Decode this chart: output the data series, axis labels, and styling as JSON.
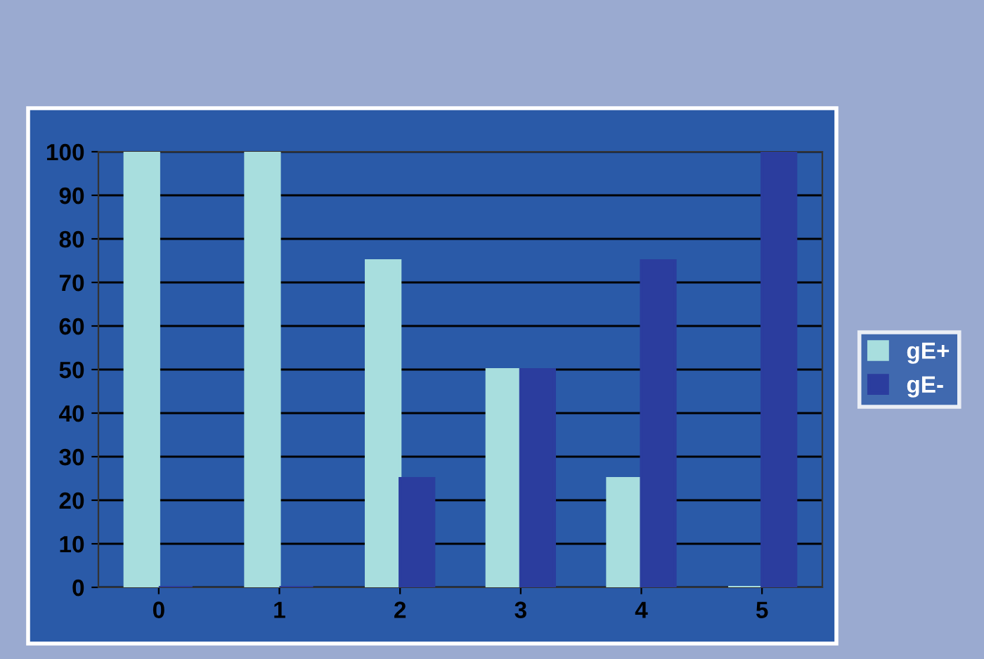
{
  "chart_data": {
    "type": "bar",
    "categories": [
      "0",
      "1",
      "2",
      "3",
      "4",
      "5"
    ],
    "series": [
      {
        "name": "gE+",
        "color": "#a8dede",
        "values": [
          100,
          100,
          75,
          50,
          25,
          0
        ]
      },
      {
        "name": "gE-",
        "color": "#2b3d9e",
        "values": [
          0,
          0,
          25,
          50,
          75,
          100
        ]
      }
    ],
    "ylim": [
      0,
      100
    ],
    "yticks": [
      0,
      10,
      20,
      30,
      40,
      50,
      60,
      70,
      80,
      90,
      100
    ],
    "grid": "y",
    "legend": "right"
  }
}
